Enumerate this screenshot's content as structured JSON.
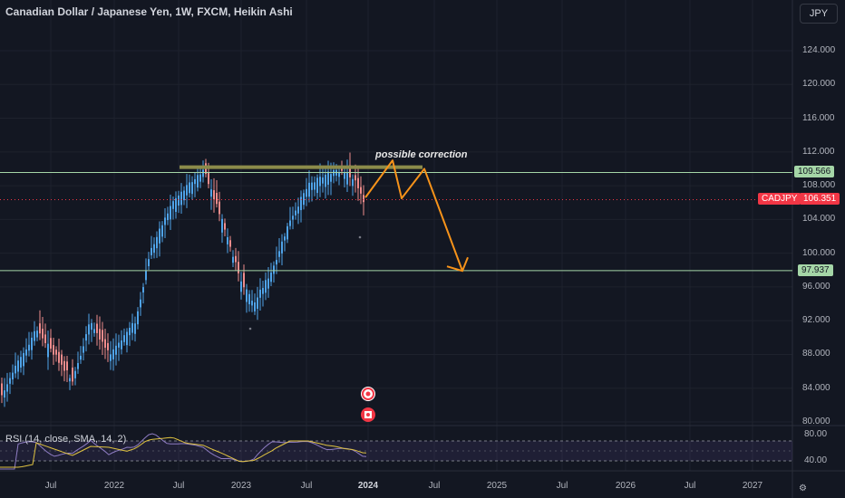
{
  "header": {
    "title": "Canadian Dollar / Japanese Yen, 1W, FXCM, Heikin Ashi",
    "currency_button": "JPY"
  },
  "price_axis": {
    "labels": [
      "124.000",
      "120.000",
      "116.000",
      "112.000",
      "108.000",
      "104.000",
      "100.000",
      "96.000",
      "92.000",
      "88.000",
      "84.000",
      "80.000"
    ],
    "values": [
      124,
      120,
      116,
      112,
      108,
      104,
      100,
      96,
      92,
      88,
      84,
      80
    ]
  },
  "tags": {
    "upper_level": {
      "label": "109.566",
      "color": "#a5d6a7"
    },
    "current": {
      "label_symbol": "CADJPY",
      "label_price": "106.351",
      "color": "#f23645"
    },
    "lower_level": {
      "label": "97.937",
      "color": "#a5d6a7"
    }
  },
  "annotation": {
    "text": "possible correction",
    "color": "#f7931a"
  },
  "rsi": {
    "label": "RSI (14, close, SMA, 14, 2)",
    "axis_labels": [
      "80.00",
      "40.00"
    ]
  },
  "time_axis": {
    "labels": [
      {
        "text": "Jul",
        "bold": false
      },
      {
        "text": "2022",
        "bold": false
      },
      {
        "text": "Jul",
        "bold": false
      },
      {
        "text": "2023",
        "bold": false
      },
      {
        "text": "Jul",
        "bold": false
      },
      {
        "text": "2024",
        "bold": true
      },
      {
        "text": "Jul",
        "bold": false
      },
      {
        "text": "2025",
        "bold": false
      },
      {
        "text": "Jul",
        "bold": false
      },
      {
        "text": "2026",
        "bold": false
      },
      {
        "text": "Jul",
        "bold": false
      },
      {
        "text": "2027",
        "bold": false
      }
    ]
  },
  "chart_data": {
    "type": "candlestick",
    "y_range": [
      80,
      124
    ],
    "levels": [
      109.566,
      97.937
    ],
    "current_price": 106.351,
    "resistance_zone": 110.2,
    "projection_path": [
      110.2,
      111.0,
      106.5,
      110.0,
      97.9
    ],
    "colors": {
      "up": "#4fa3e8",
      "down": "#ef8c8c",
      "level": "#a5d6a7",
      "projection": "#f7931a",
      "zone": "#8b8b4a",
      "rsi": "#8e7cc3",
      "rsi_ma": "#e0c341"
    }
  }
}
